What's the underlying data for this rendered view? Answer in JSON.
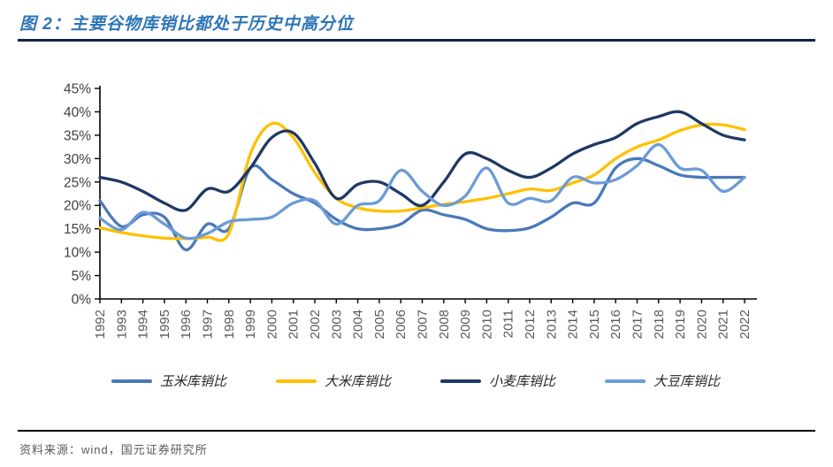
{
  "figure": {
    "title": "图 2：主要谷物库销比都处于历史中高分位",
    "source": "资料来源：wind，国元证券研究所"
  },
  "colors": {
    "title_accent": "#2E75B6",
    "title_rule": "#10243E",
    "axis": "#000000",
    "y_tick_label": "#404040",
    "x_tick_label": "#595959",
    "legend_text": "#262626",
    "source_text": "#595959"
  },
  "chart_data": {
    "type": "line",
    "title": "",
    "xlabel": "",
    "ylabel": "",
    "grid": false,
    "legend_position": "bottom",
    "smooth": true,
    "ylim": [
      0,
      45
    ],
    "ytick_step": 5,
    "ytick_labels": [
      "0%",
      "5%",
      "10%",
      "15%",
      "20%",
      "25%",
      "30%",
      "35%",
      "40%",
      "45%"
    ],
    "x": [
      1992,
      1993,
      1994,
      1995,
      1996,
      1997,
      1998,
      1999,
      2000,
      2001,
      2002,
      2003,
      2004,
      2005,
      2006,
      2007,
      2008,
      2009,
      2010,
      2011,
      2012,
      2013,
      2014,
      2015,
      2016,
      2017,
      2018,
      2019,
      2020,
      2021,
      2022
    ],
    "series": [
      {
        "key": "corn",
        "name": "玉米库销比",
        "color": "#4979B8",
        "values": [
          21,
          15.5,
          18,
          17.5,
          10.5,
          16,
          15,
          28,
          25.5,
          22.5,
          20.5,
          17,
          15,
          15,
          16,
          19,
          18,
          17,
          15,
          14.6,
          15.2,
          17.5,
          20.5,
          20.5,
          28,
          30,
          28.5,
          26.5,
          26,
          26,
          26
        ]
      },
      {
        "key": "rice",
        "name": "大米库销比",
        "color": "#FFC000",
        "values": [
          15.2,
          14.2,
          13.5,
          13,
          12.9,
          13.2,
          14,
          31,
          37.5,
          34.5,
          27,
          21.5,
          19.5,
          18.8,
          18.8,
          19.5,
          20.2,
          20.8,
          21.5,
          22.5,
          23.5,
          23.2,
          24.8,
          26.5,
          30,
          32.5,
          34,
          36,
          37.2,
          37.2,
          36.2
        ]
      },
      {
        "key": "wheat",
        "name": "小麦库销比",
        "color": "#1F3864",
        "values": [
          26,
          25,
          23,
          20.5,
          19,
          23.5,
          23,
          28,
          34.5,
          35.5,
          29,
          21.5,
          24.5,
          25,
          22.5,
          20,
          25,
          31,
          30,
          27.5,
          26,
          28,
          31,
          33,
          34.5,
          37.5,
          39,
          40,
          37.5,
          35,
          34
        ]
      },
      {
        "key": "soybean",
        "name": "大豆库销比",
        "color": "#6B9BD7",
        "values": [
          17.3,
          14.8,
          18.5,
          16,
          13,
          14,
          16.5,
          17,
          17.5,
          20.5,
          21,
          16,
          20,
          21,
          27.5,
          23,
          20,
          22,
          28,
          20.5,
          21.5,
          21,
          26,
          24.8,
          25.5,
          28.5,
          33,
          28,
          27.5,
          23,
          26
        ]
      }
    ]
  }
}
